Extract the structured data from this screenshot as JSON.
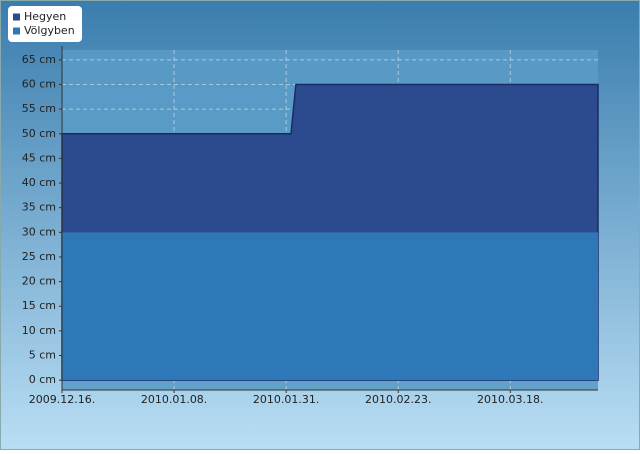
{
  "chart_data": {
    "type": "area",
    "x": [
      "2009-12-16",
      "2010-02-01",
      "2010-02-02",
      "2010-04-05"
    ],
    "series": [
      {
        "name": "Hegyen",
        "color": "#2c4a8e",
        "values": [
          50,
          50,
          60,
          60
        ]
      },
      {
        "name": "Völgyben",
        "color": "#2e78b8",
        "values": [
          30,
          30,
          30,
          30
        ]
      }
    ],
    "xlim": [
      "2009-12-16",
      "2010-04-05"
    ],
    "xticks": [
      {
        "value": "2009-12-16",
        "label": "2009.12.16."
      },
      {
        "value": "2010-01-08",
        "label": "2010.01.08."
      },
      {
        "value": "2010-01-31",
        "label": "2010.01.31."
      },
      {
        "value": "2010-02-23",
        "label": "2010.02.23."
      },
      {
        "value": "2010-03-18",
        "label": "2010.03.18."
      }
    ],
    "ylim": [
      -2,
      67
    ],
    "yticks": [
      {
        "value": 0,
        "label": "0 cm"
      },
      {
        "value": 5,
        "label": "5 cm"
      },
      {
        "value": 10,
        "label": "10 cm"
      },
      {
        "value": 15,
        "label": "15 cm"
      },
      {
        "value": 20,
        "label": "20 cm"
      },
      {
        "value": 25,
        "label": "25 cm"
      },
      {
        "value": 30,
        "label": "30 cm"
      },
      {
        "value": 35,
        "label": "35 cm"
      },
      {
        "value": 40,
        "label": "40 cm"
      },
      {
        "value": 45,
        "label": "45 cm"
      },
      {
        "value": 50,
        "label": "50 cm"
      },
      {
        "value": 55,
        "label": "55 cm"
      },
      {
        "value": 60,
        "label": "60 cm"
      },
      {
        "value": 65,
        "label": "65 cm"
      }
    ],
    "grid": true,
    "legend": "upper left"
  }
}
